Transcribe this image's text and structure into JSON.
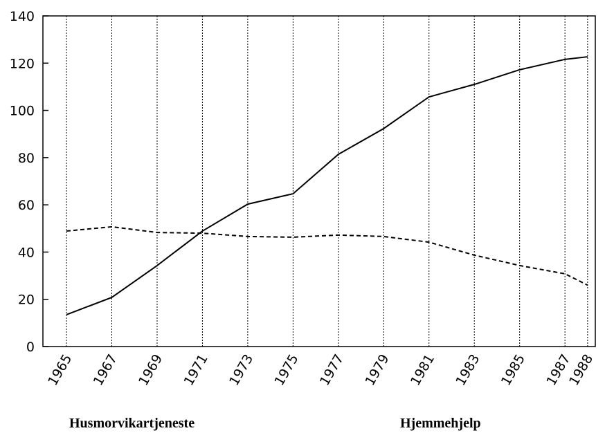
{
  "chart_data": {
    "type": "line",
    "x": [
      1965,
      1967,
      1969,
      1971,
      1973,
      1975,
      1977,
      1979,
      1981,
      1983,
      1985,
      1987,
      1988
    ],
    "series": [
      {
        "name": "Husmorvikartjeneste",
        "color": "#000000",
        "dash": true,
        "values": [
          48.9,
          50.7,
          48.3,
          48,
          46.6,
          46.3,
          47.2,
          46.6,
          44.2,
          38.7,
          34.3,
          30.8,
          26
        ]
      },
      {
        "name": "Hjemmehjelp",
        "color": "#000000",
        "dash": false,
        "values": [
          13.5,
          20.8,
          34.3,
          48.9,
          60.3,
          64.7,
          81.4,
          92.3,
          105.7,
          111,
          117.2,
          121.6,
          122.7
        ]
      }
    ],
    "xlim": [
      1963.96,
      1988.34
    ],
    "xticks": [
      1965,
      1967,
      1969,
      1971,
      1973,
      1975,
      1977,
      1979,
      1981,
      1983,
      1985,
      1987,
      1988
    ],
    "ylim": [
      0,
      140
    ],
    "yticks": [
      0,
      20,
      40,
      60,
      80,
      100,
      120,
      140
    ],
    "grid": true
  }
}
